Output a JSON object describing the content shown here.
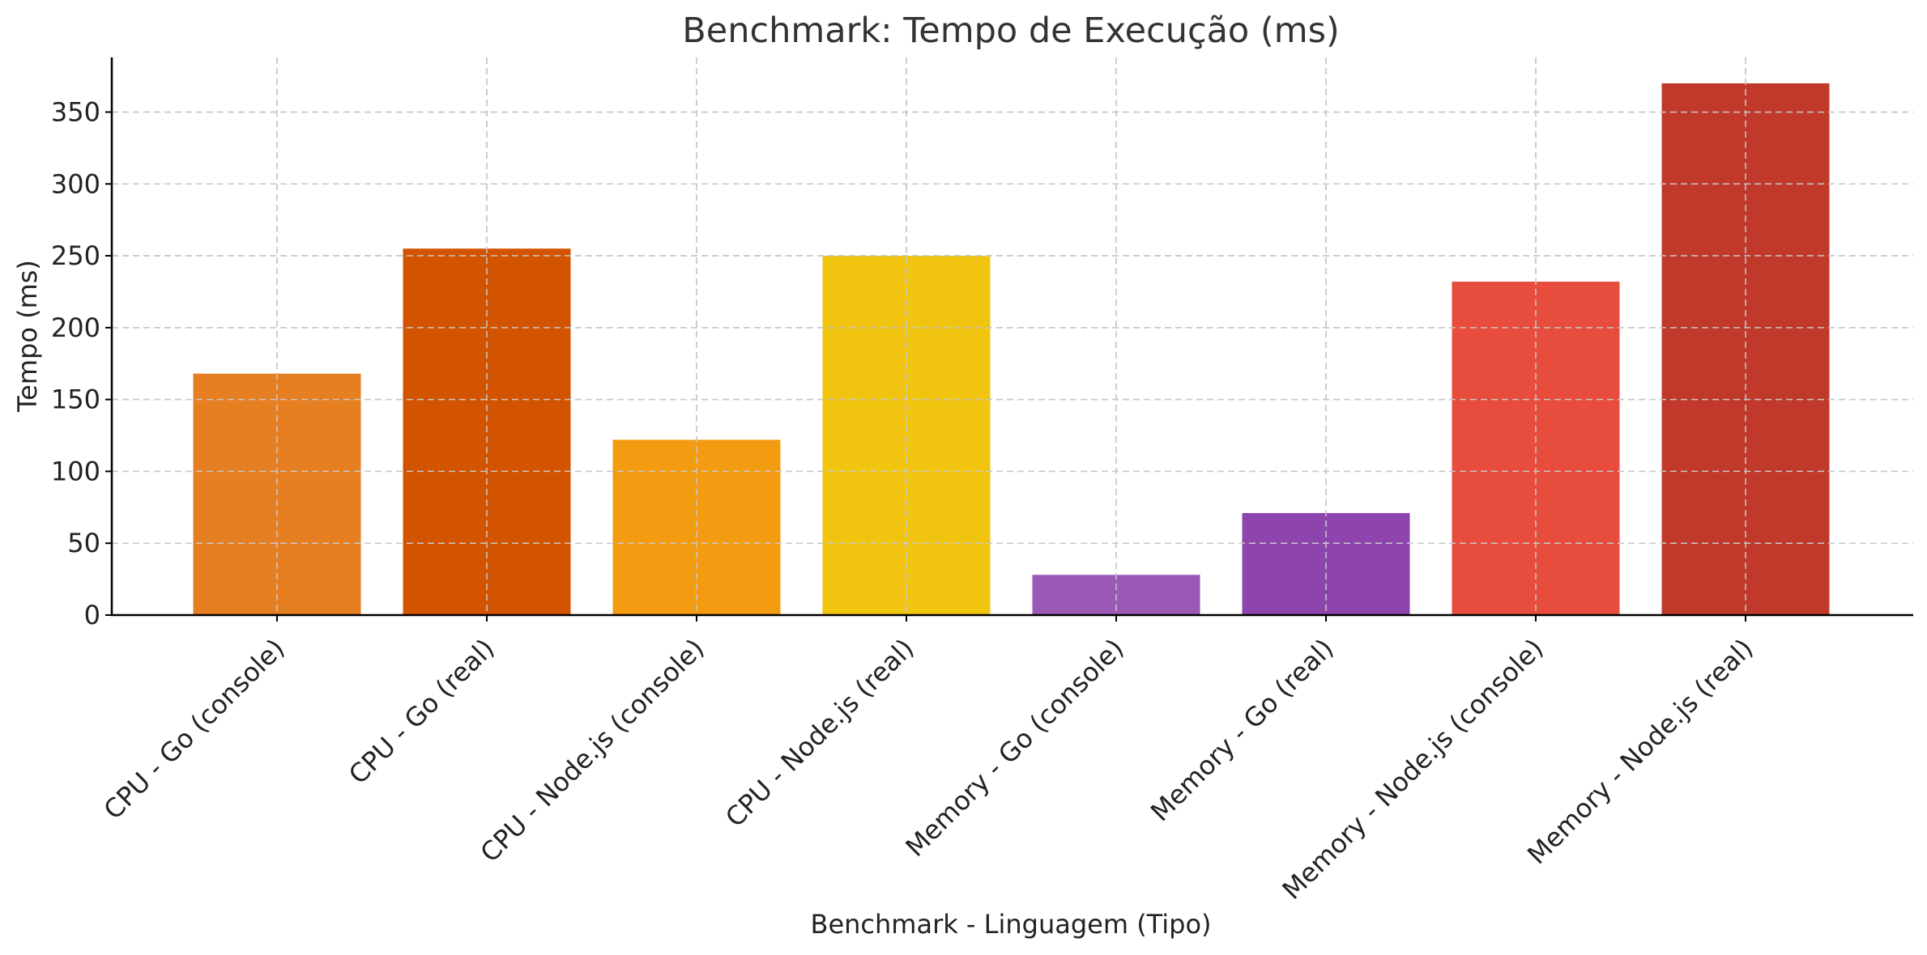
{
  "chart_data": {
    "type": "bar",
    "title": "Benchmark: Tempo de Execução (ms)",
    "xlabel": "Benchmark - Linguagem (Tipo)",
    "ylabel": "Tempo (ms)",
    "ylim": [
      0,
      388
    ],
    "yticks": [
      0,
      50,
      100,
      150,
      200,
      250,
      300,
      350
    ],
    "grid": true,
    "categories": [
      "CPU - Go (console)",
      "CPU - Go (real)",
      "CPU - Node.js (console)",
      "CPU - Node.js (real)",
      "Memory - Go (console)",
      "Memory - Go (real)",
      "Memory - Node.js (console)",
      "Memory - Node.js (real)"
    ],
    "values": [
      168,
      255,
      122,
      250,
      28,
      71,
      232,
      370
    ],
    "colors": [
      "#e67e22",
      "#d35400",
      "#f39c12",
      "#f1c40f",
      "#9b59b6",
      "#8e44ad",
      "#e74c3c",
      "#c0392b"
    ]
  }
}
